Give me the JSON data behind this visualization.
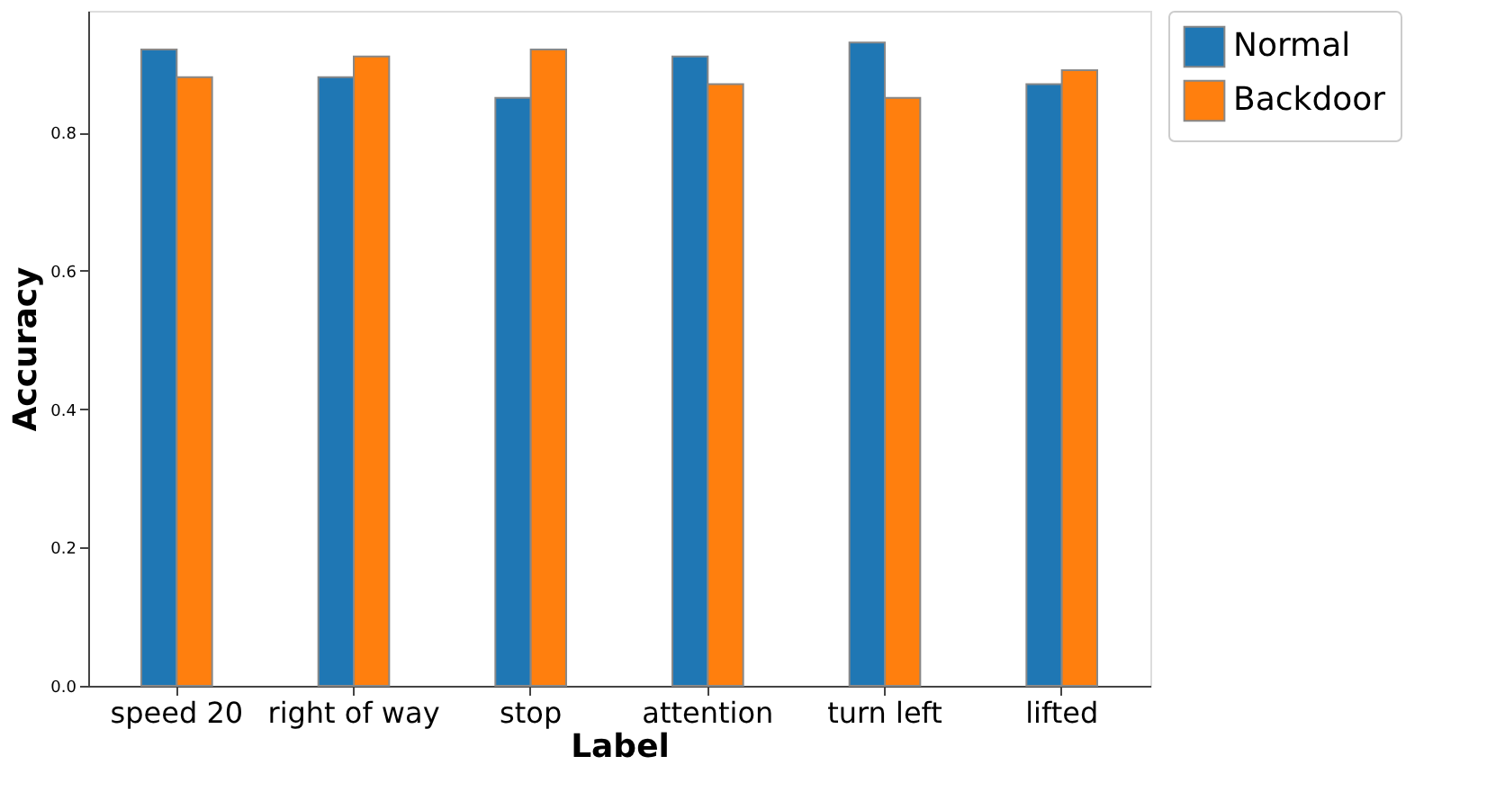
{
  "chart_data": {
    "type": "bar",
    "xlabel": "Label",
    "ylabel": "Accuracy",
    "categories": [
      "speed 20",
      "right of way",
      "stop",
      "attention",
      "turn left",
      "lifted"
    ],
    "series": [
      {
        "name": "Normal",
        "color": "#1f77b4",
        "values": [
          0.92,
          0.88,
          0.85,
          0.91,
          0.93,
          0.87
        ]
      },
      {
        "name": "Backdoor",
        "color": "#ff7f0e",
        "values": [
          0.88,
          0.91,
          0.92,
          0.87,
          0.85,
          0.89
        ]
      }
    ],
    "ylim": [
      0,
      0.976
    ],
    "yticks": [
      {
        "value": 0,
        "label": "0.0"
      },
      0.2,
      0.4,
      0.6,
      0.8
    ],
    "grid": false,
    "legend": "top right"
  }
}
